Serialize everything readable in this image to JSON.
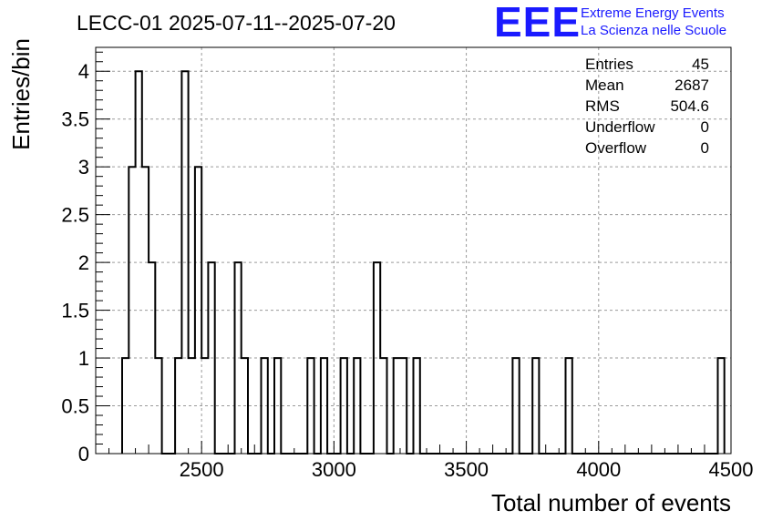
{
  "chart_data": {
    "type": "bar",
    "title": "LECC-01 2025-07-11--2025-07-20",
    "xlabel": "Total number of events",
    "ylabel": "Entries/bin",
    "xlim": [
      2100,
      4500
    ],
    "ylim": [
      0,
      4.25
    ],
    "bin_width": 25,
    "grid": true,
    "x_ticks": [
      "2500",
      "3000",
      "3500",
      "4000",
      "4500"
    ],
    "y_ticks": [
      "0",
      "0.5",
      "1",
      "1.5",
      "2",
      "2.5",
      "3",
      "3.5",
      "4"
    ],
    "bins": [
      {
        "x": 2200,
        "value": 1
      },
      {
        "x": 2225,
        "value": 3
      },
      {
        "x": 2250,
        "value": 4
      },
      {
        "x": 2275,
        "value": 3
      },
      {
        "x": 2300,
        "value": 2
      },
      {
        "x": 2325,
        "value": 1
      },
      {
        "x": 2400,
        "value": 1
      },
      {
        "x": 2425,
        "value": 4
      },
      {
        "x": 2450,
        "value": 1
      },
      {
        "x": 2475,
        "value": 3
      },
      {
        "x": 2500,
        "value": 1
      },
      {
        "x": 2525,
        "value": 2
      },
      {
        "x": 2625,
        "value": 2
      },
      {
        "x": 2650,
        "value": 1
      },
      {
        "x": 2725,
        "value": 1
      },
      {
        "x": 2775,
        "value": 1
      },
      {
        "x": 2900,
        "value": 1
      },
      {
        "x": 2950,
        "value": 1
      },
      {
        "x": 3025,
        "value": 1
      },
      {
        "x": 3075,
        "value": 1
      },
      {
        "x": 3150,
        "value": 2
      },
      {
        "x": 3175,
        "value": 1
      },
      {
        "x": 3225,
        "value": 1
      },
      {
        "x": 3250,
        "value": 1
      },
      {
        "x": 3300,
        "value": 1
      },
      {
        "x": 3675,
        "value": 1
      },
      {
        "x": 3750,
        "value": 1
      },
      {
        "x": 3875,
        "value": 1
      },
      {
        "x": 4450,
        "value": 1
      }
    ],
    "stats": [
      {
        "label": "Entries",
        "value": "45"
      },
      {
        "label": "Mean",
        "value": "2687"
      },
      {
        "label": "RMS",
        "value": "504.6"
      },
      {
        "label": "Underflow",
        "value": "0"
      },
      {
        "label": "Overflow",
        "value": "0"
      }
    ]
  },
  "logo": {
    "text": "EEE",
    "line1": "Extreme Energy Events",
    "line2": "La Scienza nelle Scuole",
    "color": "#1a1aff"
  }
}
